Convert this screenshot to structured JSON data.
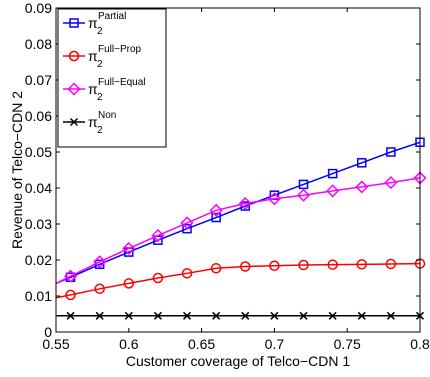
{
  "chart_data": {
    "type": "line",
    "xlabel": "Customer coverage of Telco−CDN 1",
    "ylabel": "Revenue of Telco−CDN 2",
    "xlim": [
      0.55,
      0.8
    ],
    "ylim": [
      0,
      0.09
    ],
    "xticks": [
      0.55,
      0.6,
      0.65,
      0.7,
      0.75,
      0.8
    ],
    "xtick_labels": [
      "0.55",
      "0.6",
      "0.65",
      "0.7",
      "0.75",
      "0.8"
    ],
    "yticks": [
      0,
      0.01,
      0.02,
      0.03,
      0.04,
      0.05,
      0.06,
      0.07,
      0.08,
      0.09
    ],
    "ytick_labels": [
      "0",
      "0.01",
      "0.02",
      "0.03",
      "0.04",
      "0.05",
      "0.06",
      "0.07",
      "0.08",
      "0.09"
    ],
    "grid": false,
    "legend_position": "top-left",
    "series": [
      {
        "name_main": "π",
        "name_sub": "2",
        "name_sup": "Partial",
        "color": "#0000ff",
        "marker": "square",
        "line_start": [
          0.55,
          0.0135
        ],
        "x": [
          0.56,
          0.58,
          0.6,
          0.62,
          0.64,
          0.66,
          0.68,
          0.7,
          0.72,
          0.74,
          0.76,
          0.78,
          0.8
        ],
        "y": [
          0.0152,
          0.0188,
          0.0222,
          0.0255,
          0.0287,
          0.0318,
          0.035,
          0.038,
          0.041,
          0.044,
          0.047,
          0.05,
          0.0527
        ]
      },
      {
        "name_main": "π",
        "name_sub": "2",
        "name_sup": "Full−Prop",
        "color": "#ff0000",
        "marker": "circle",
        "line_start": [
          0.55,
          0.0095
        ],
        "x": [
          0.56,
          0.58,
          0.6,
          0.62,
          0.64,
          0.66,
          0.68,
          0.7,
          0.72,
          0.74,
          0.76,
          0.78,
          0.8
        ],
        "y": [
          0.0103,
          0.012,
          0.0135,
          0.015,
          0.0163,
          0.0177,
          0.0182,
          0.0184,
          0.0186,
          0.0187,
          0.0188,
          0.0189,
          0.019
        ]
      },
      {
        "name_main": "π",
        "name_sub": "2",
        "name_sup": "Full−Equal",
        "color": "#ff00ff",
        "marker": "diamond",
        "line_start": [
          0.55,
          0.0135
        ],
        "x": [
          0.56,
          0.58,
          0.6,
          0.62,
          0.64,
          0.66,
          0.68,
          0.7,
          0.72,
          0.74,
          0.76,
          0.78,
          0.8
        ],
        "y": [
          0.0155,
          0.0195,
          0.0232,
          0.0268,
          0.0303,
          0.0338,
          0.0357,
          0.037,
          0.038,
          0.0392,
          0.0403,
          0.0415,
          0.0428
        ]
      },
      {
        "name_main": "π",
        "name_sub": "2",
        "name_sup": "Non",
        "color": "#000000",
        "marker": "x",
        "line_start": [
          0.55,
          0.0045
        ],
        "x": [
          0.56,
          0.58,
          0.6,
          0.62,
          0.64,
          0.66,
          0.68,
          0.7,
          0.72,
          0.74,
          0.76,
          0.78,
          0.8
        ],
        "y": [
          0.0045,
          0.0045,
          0.0045,
          0.0045,
          0.0045,
          0.0045,
          0.0045,
          0.0045,
          0.0045,
          0.0045,
          0.0045,
          0.0045,
          0.0045
        ]
      }
    ]
  }
}
